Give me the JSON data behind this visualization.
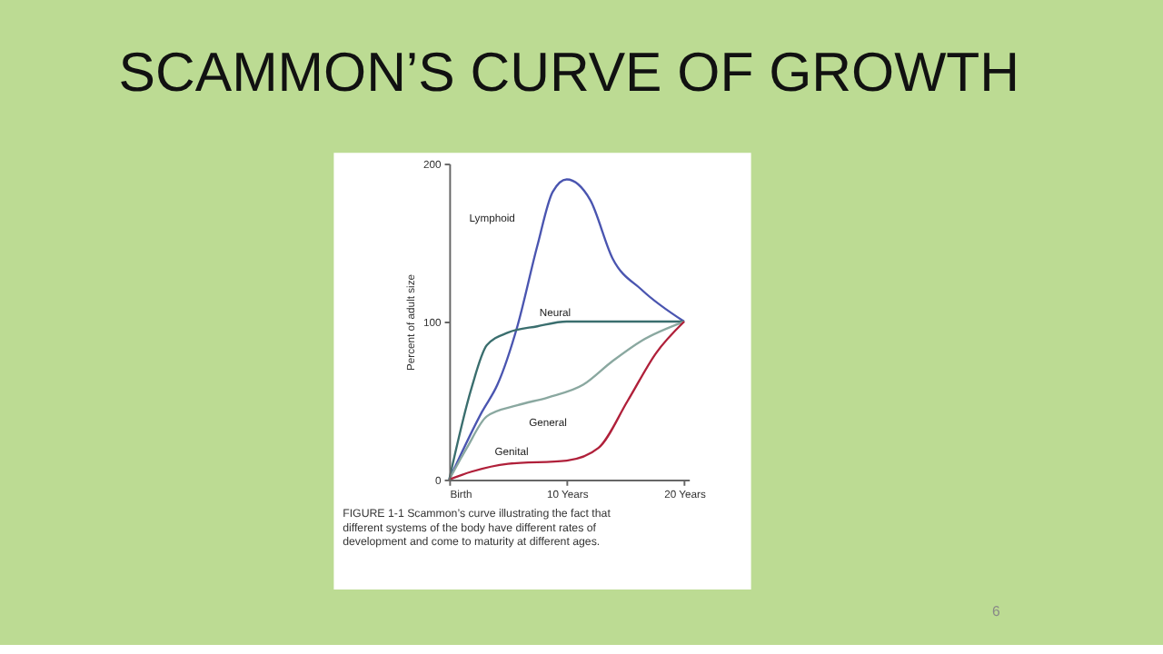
{
  "chart_data": {
    "type": "line",
    "title": "SCAMMON’S CURVE OF GROWTH",
    "ylabel": "Percent of adult size",
    "xlim": [
      0,
      20.4
    ],
    "xticks": [
      {
        "value": 0,
        "label": "Birth"
      },
      {
        "value": 10,
        "label": "10 Years"
      },
      {
        "value": 20,
        "label": "20 Years"
      }
    ],
    "ylim": [
      0,
      200
    ],
    "yticks": [
      0,
      100,
      200
    ],
    "grid": false,
    "marker": "none",
    "line_style": "solid",
    "series": [
      {
        "name": "Lymphoid",
        "color": "#4a55b0",
        "x": [
          0,
          2.8,
          4.1,
          5.8,
          7.5,
          8.8,
          10,
          12.0,
          13.9,
          16.4,
          20
        ],
        "values": [
          0,
          43,
          60,
          97,
          148,
          182,
          190,
          177,
          140,
          120,
          100
        ]
      },
      {
        "name": "Neural",
        "color": "#3a6e6e",
        "x": [
          0,
          1.9,
          3.2,
          5.0,
          7.5,
          10,
          15.2,
          20
        ],
        "values": [
          0,
          58,
          85,
          93,
          97,
          100,
          100,
          100
        ]
      },
      {
        "name": "General",
        "color": "#8aa8a0",
        "x": [
          0,
          1.5,
          3.2,
          5.8,
          8.4,
          11.4,
          13.9,
          16.4,
          20
        ],
        "values": [
          0,
          20,
          40,
          47,
          52,
          60,
          75,
          88,
          100
        ]
      },
      {
        "name": "Genital",
        "color": "#b0203a",
        "x": [
          0,
          1.9,
          5.0,
          10,
          12.7,
          15.2,
          17.6,
          20
        ],
        "values": [
          0,
          5,
          10,
          12,
          20,
          50,
          80,
          100
        ]
      }
    ],
    "annotations": [
      "FIGURE 1-1 Scammon’s curve illustrating the fact that different systems of the body have different rates of development and come to maturity at different ages.",
      "6"
    ]
  }
}
